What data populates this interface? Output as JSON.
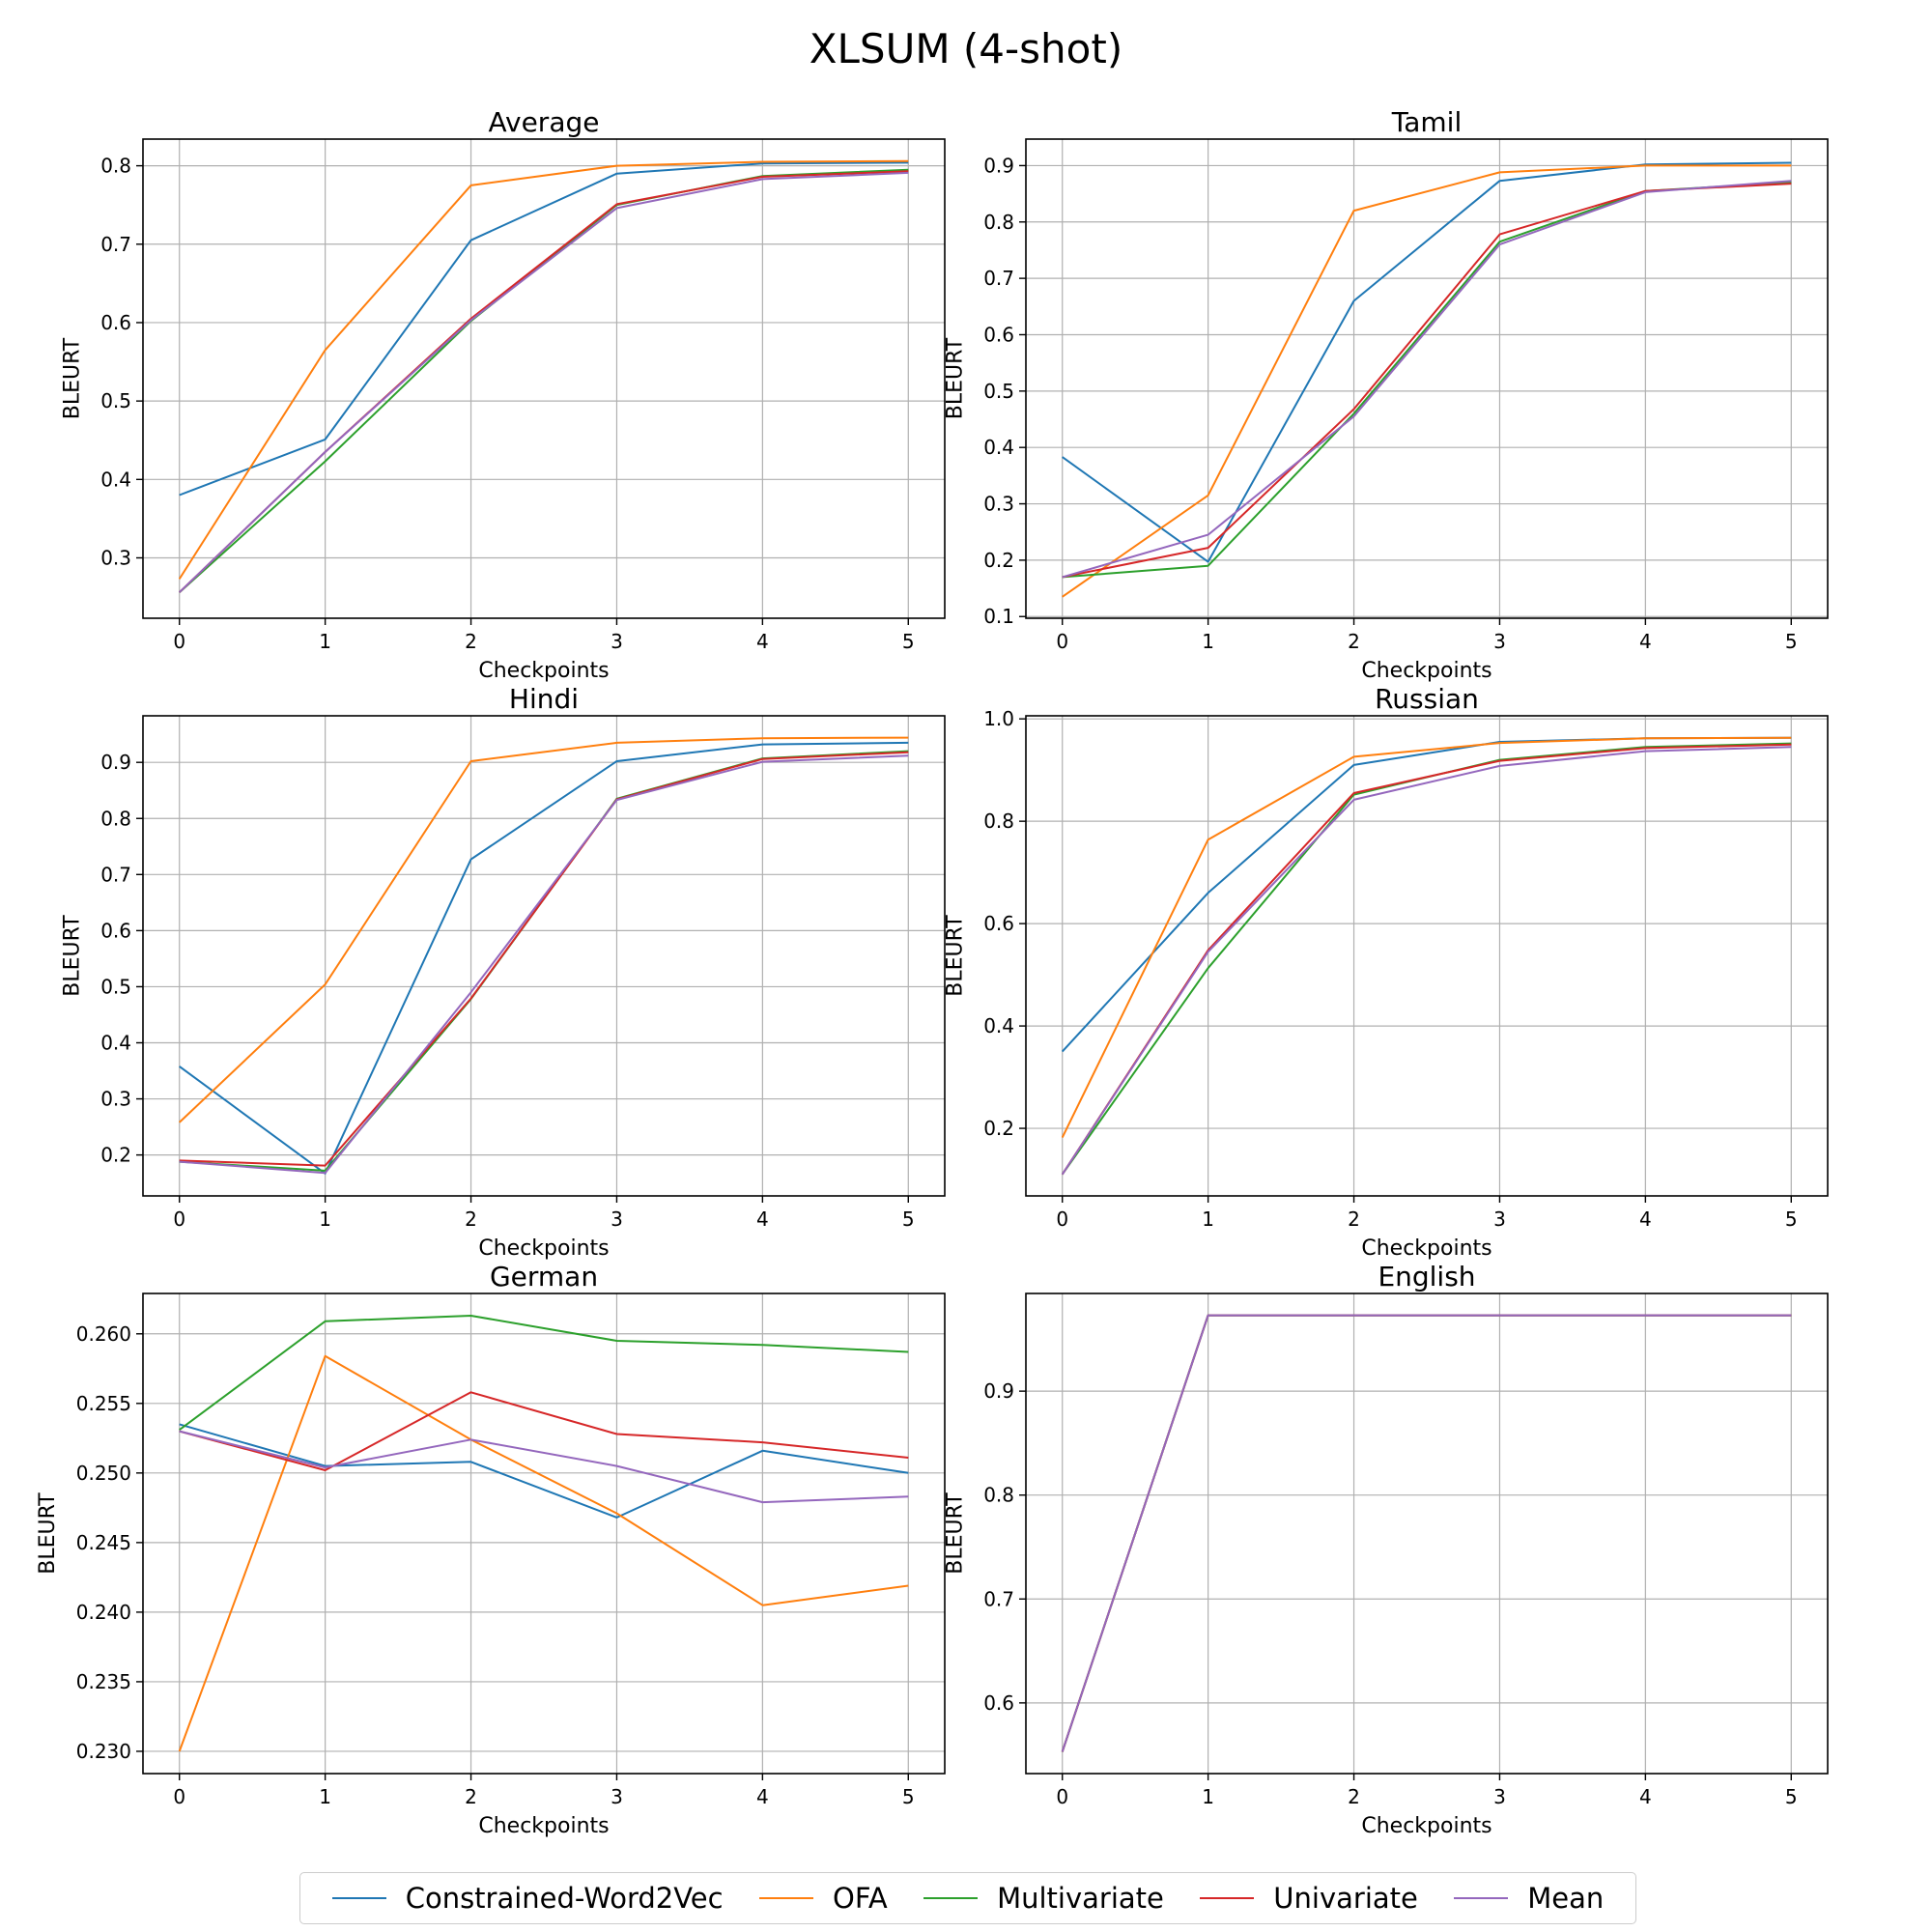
{
  "suptitle": "XLSUM (4-shot)",
  "series_names": [
    "Constrained-Word2Vec",
    "OFA",
    "Multivariate",
    "Univariate",
    "Mean"
  ],
  "colors": [
    "#1f77b4",
    "#ff7f0e",
    "#2ca02c",
    "#d62728",
    "#9467bd"
  ],
  "chart_data": [
    {
      "type": "line",
      "title": "Average",
      "xlabel": "Checkpoints",
      "ylabel": "BLEURT",
      "x": [
        0,
        1,
        2,
        3,
        4,
        5
      ],
      "xlim": [
        -0.25,
        5.25
      ],
      "ylim": [
        0.223,
        0.834
      ],
      "xticks": [
        "0",
        "1",
        "2",
        "3",
        "4",
        "5"
      ],
      "yticks": [
        0.3,
        0.4,
        0.5,
        0.6,
        0.7,
        0.8
      ],
      "ytick_labels": [
        "0.3",
        "0.4",
        "0.5",
        "0.6",
        "0.7",
        "0.8"
      ],
      "grid": true,
      "series": [
        {
          "name": "Constrained-Word2Vec",
          "values": [
            0.38,
            0.451,
            0.705,
            0.79,
            0.803,
            0.804
          ]
        },
        {
          "name": "OFA",
          "values": [
            0.273,
            0.565,
            0.775,
            0.8,
            0.805,
            0.806
          ]
        },
        {
          "name": "Multivariate",
          "values": [
            0.256,
            0.423,
            0.602,
            0.75,
            0.787,
            0.795
          ]
        },
        {
          "name": "Univariate",
          "values": [
            0.256,
            0.435,
            0.605,
            0.751,
            0.786,
            0.793
          ]
        },
        {
          "name": "Mean",
          "values": [
            0.256,
            0.435,
            0.603,
            0.746,
            0.783,
            0.791
          ]
        }
      ]
    },
    {
      "type": "line",
      "title": "Tamil",
      "xlabel": "Checkpoints",
      "ylabel": "BLEURT",
      "x": [
        0,
        1,
        2,
        3,
        4,
        5
      ],
      "xlim": [
        -0.25,
        5.25
      ],
      "ylim": [
        0.097,
        0.947
      ],
      "xticks": [
        "0",
        "1",
        "2",
        "3",
        "4",
        "5"
      ],
      "yticks": [
        0.1,
        0.2,
        0.3,
        0.4,
        0.5,
        0.6,
        0.7,
        0.8,
        0.9
      ],
      "ytick_labels": [
        "0.1",
        "0.2",
        "0.3",
        "0.4",
        "0.5",
        "0.6",
        "0.7",
        "0.8",
        "0.9"
      ],
      "grid": true,
      "series": [
        {
          "name": "Constrained-Word2Vec",
          "values": [
            0.383,
            0.197,
            0.66,
            0.873,
            0.902,
            0.905
          ]
        },
        {
          "name": "OFA",
          "values": [
            0.135,
            0.315,
            0.82,
            0.888,
            0.9,
            0.9
          ]
        },
        {
          "name": "Multivariate",
          "values": [
            0.17,
            0.19,
            0.46,
            0.765,
            0.855,
            0.87
          ]
        },
        {
          "name": "Univariate",
          "values": [
            0.17,
            0.222,
            0.468,
            0.778,
            0.855,
            0.868
          ]
        },
        {
          "name": "Mean",
          "values": [
            0.17,
            0.245,
            0.455,
            0.76,
            0.853,
            0.873
          ]
        }
      ]
    },
    {
      "type": "line",
      "title": "Hindi",
      "xlabel": "Checkpoints",
      "ylabel": "BLEURT",
      "x": [
        0,
        1,
        2,
        3,
        4,
        5
      ],
      "xlim": [
        -0.25,
        5.25
      ],
      "ylim": [
        0.127,
        0.983
      ],
      "xticks": [
        "0",
        "1",
        "2",
        "3",
        "4",
        "5"
      ],
      "yticks": [
        0.2,
        0.3,
        0.4,
        0.5,
        0.6,
        0.7,
        0.8,
        0.9
      ],
      "ytick_labels": [
        "0.2",
        "0.3",
        "0.4",
        "0.5",
        "0.6",
        "0.7",
        "0.8",
        "0.9"
      ],
      "grid": true,
      "series": [
        {
          "name": "Constrained-Word2Vec",
          "values": [
            0.358,
            0.167,
            0.727,
            0.902,
            0.932,
            0.935
          ]
        },
        {
          "name": "OFA",
          "values": [
            0.258,
            0.504,
            0.902,
            0.935,
            0.943,
            0.944
          ]
        },
        {
          "name": "Multivariate",
          "values": [
            0.188,
            0.172,
            0.478,
            0.835,
            0.907,
            0.92
          ]
        },
        {
          "name": "Univariate",
          "values": [
            0.19,
            0.181,
            0.479,
            0.834,
            0.906,
            0.918
          ]
        },
        {
          "name": "Mean",
          "values": [
            0.188,
            0.168,
            0.49,
            0.833,
            0.901,
            0.912
          ]
        }
      ]
    },
    {
      "type": "line",
      "title": "Russian",
      "xlabel": "Checkpoints",
      "ylabel": "BLEURT",
      "x": [
        0,
        1,
        2,
        3,
        4,
        5
      ],
      "xlim": [
        -0.25,
        5.25
      ],
      "ylim": [
        0.068,
        1.006
      ],
      "xticks": [
        "0",
        "1",
        "2",
        "3",
        "4",
        "5"
      ],
      "yticks": [
        0.2,
        0.4,
        0.6,
        0.8,
        1.0
      ],
      "ytick_labels": [
        "0.2",
        "0.4",
        "0.6",
        "0.8",
        "1.0"
      ],
      "grid": true,
      "series": [
        {
          "name": "Constrained-Word2Vec",
          "values": [
            0.35,
            0.66,
            0.91,
            0.955,
            0.962,
            0.963
          ]
        },
        {
          "name": "OFA",
          "values": [
            0.182,
            0.764,
            0.926,
            0.953,
            0.962,
            0.963
          ]
        },
        {
          "name": "Multivariate",
          "values": [
            0.11,
            0.513,
            0.852,
            0.92,
            0.945,
            0.952
          ]
        },
        {
          "name": "Univariate",
          "values": [
            0.11,
            0.548,
            0.855,
            0.918,
            0.943,
            0.95
          ]
        },
        {
          "name": "Mean",
          "values": [
            0.11,
            0.545,
            0.842,
            0.908,
            0.937,
            0.945
          ]
        }
      ]
    },
    {
      "type": "line",
      "title": "German",
      "xlabel": "Checkpoints",
      "ylabel": "BLEURT",
      "x": [
        0,
        1,
        2,
        3,
        4,
        5
      ],
      "xlim": [
        -0.25,
        5.25
      ],
      "ylim": [
        0.2284,
        0.2629
      ],
      "xticks": [
        "0",
        "1",
        "2",
        "3",
        "4",
        "5"
      ],
      "yticks": [
        0.23,
        0.235,
        0.24,
        0.245,
        0.25,
        0.255,
        0.26
      ],
      "ytick_labels": [
        "0.230",
        "0.235",
        "0.240",
        "0.245",
        "0.250",
        "0.255",
        "0.260"
      ],
      "grid": true,
      "series": [
        {
          "name": "Constrained-Word2Vec",
          "values": [
            0.2535,
            0.2505,
            0.2508,
            0.2468,
            0.2516,
            0.25
          ]
        },
        {
          "name": "OFA",
          "values": [
            0.23,
            0.2584,
            0.2524,
            0.2471,
            0.2405,
            0.2419
          ]
        },
        {
          "name": "Multivariate",
          "values": [
            0.2531,
            0.2609,
            0.2613,
            0.2595,
            0.2592,
            0.2587
          ]
        },
        {
          "name": "Univariate",
          "values": [
            0.253,
            0.2502,
            0.2558,
            0.2528,
            0.2522,
            0.2511
          ]
        },
        {
          "name": "Mean",
          "values": [
            0.253,
            0.2504,
            0.2524,
            0.2505,
            0.2479,
            0.2483
          ]
        }
      ]
    },
    {
      "type": "line",
      "title": "English",
      "xlabel": "Checkpoints",
      "ylabel": "BLEURT",
      "x": [
        0,
        1,
        2,
        3,
        4,
        5
      ],
      "xlim": [
        -0.25,
        5.25
      ],
      "ylim": [
        0.532,
        0.994
      ],
      "xticks": [
        "0",
        "1",
        "2",
        "3",
        "4",
        "5"
      ],
      "yticks": [
        0.6,
        0.7,
        0.8,
        0.9
      ],
      "ytick_labels": [
        "0.6",
        "0.7",
        "0.8",
        "0.9"
      ],
      "grid": true,
      "series": [
        {
          "name": "Constrained-Word2Vec",
          "values": [
            0.553,
            0.973,
            0.973,
            0.973,
            0.973,
            0.973
          ]
        },
        {
          "name": "OFA",
          "values": [
            0.553,
            0.973,
            0.973,
            0.973,
            0.973,
            0.973
          ]
        },
        {
          "name": "Multivariate",
          "values": [
            0.553,
            0.973,
            0.973,
            0.973,
            0.973,
            0.973
          ]
        },
        {
          "name": "Univariate",
          "values": [
            0.553,
            0.973,
            0.973,
            0.973,
            0.973,
            0.973
          ]
        },
        {
          "name": "Mean",
          "values": [
            0.553,
            0.973,
            0.973,
            0.973,
            0.973,
            0.973
          ]
        }
      ]
    }
  ]
}
